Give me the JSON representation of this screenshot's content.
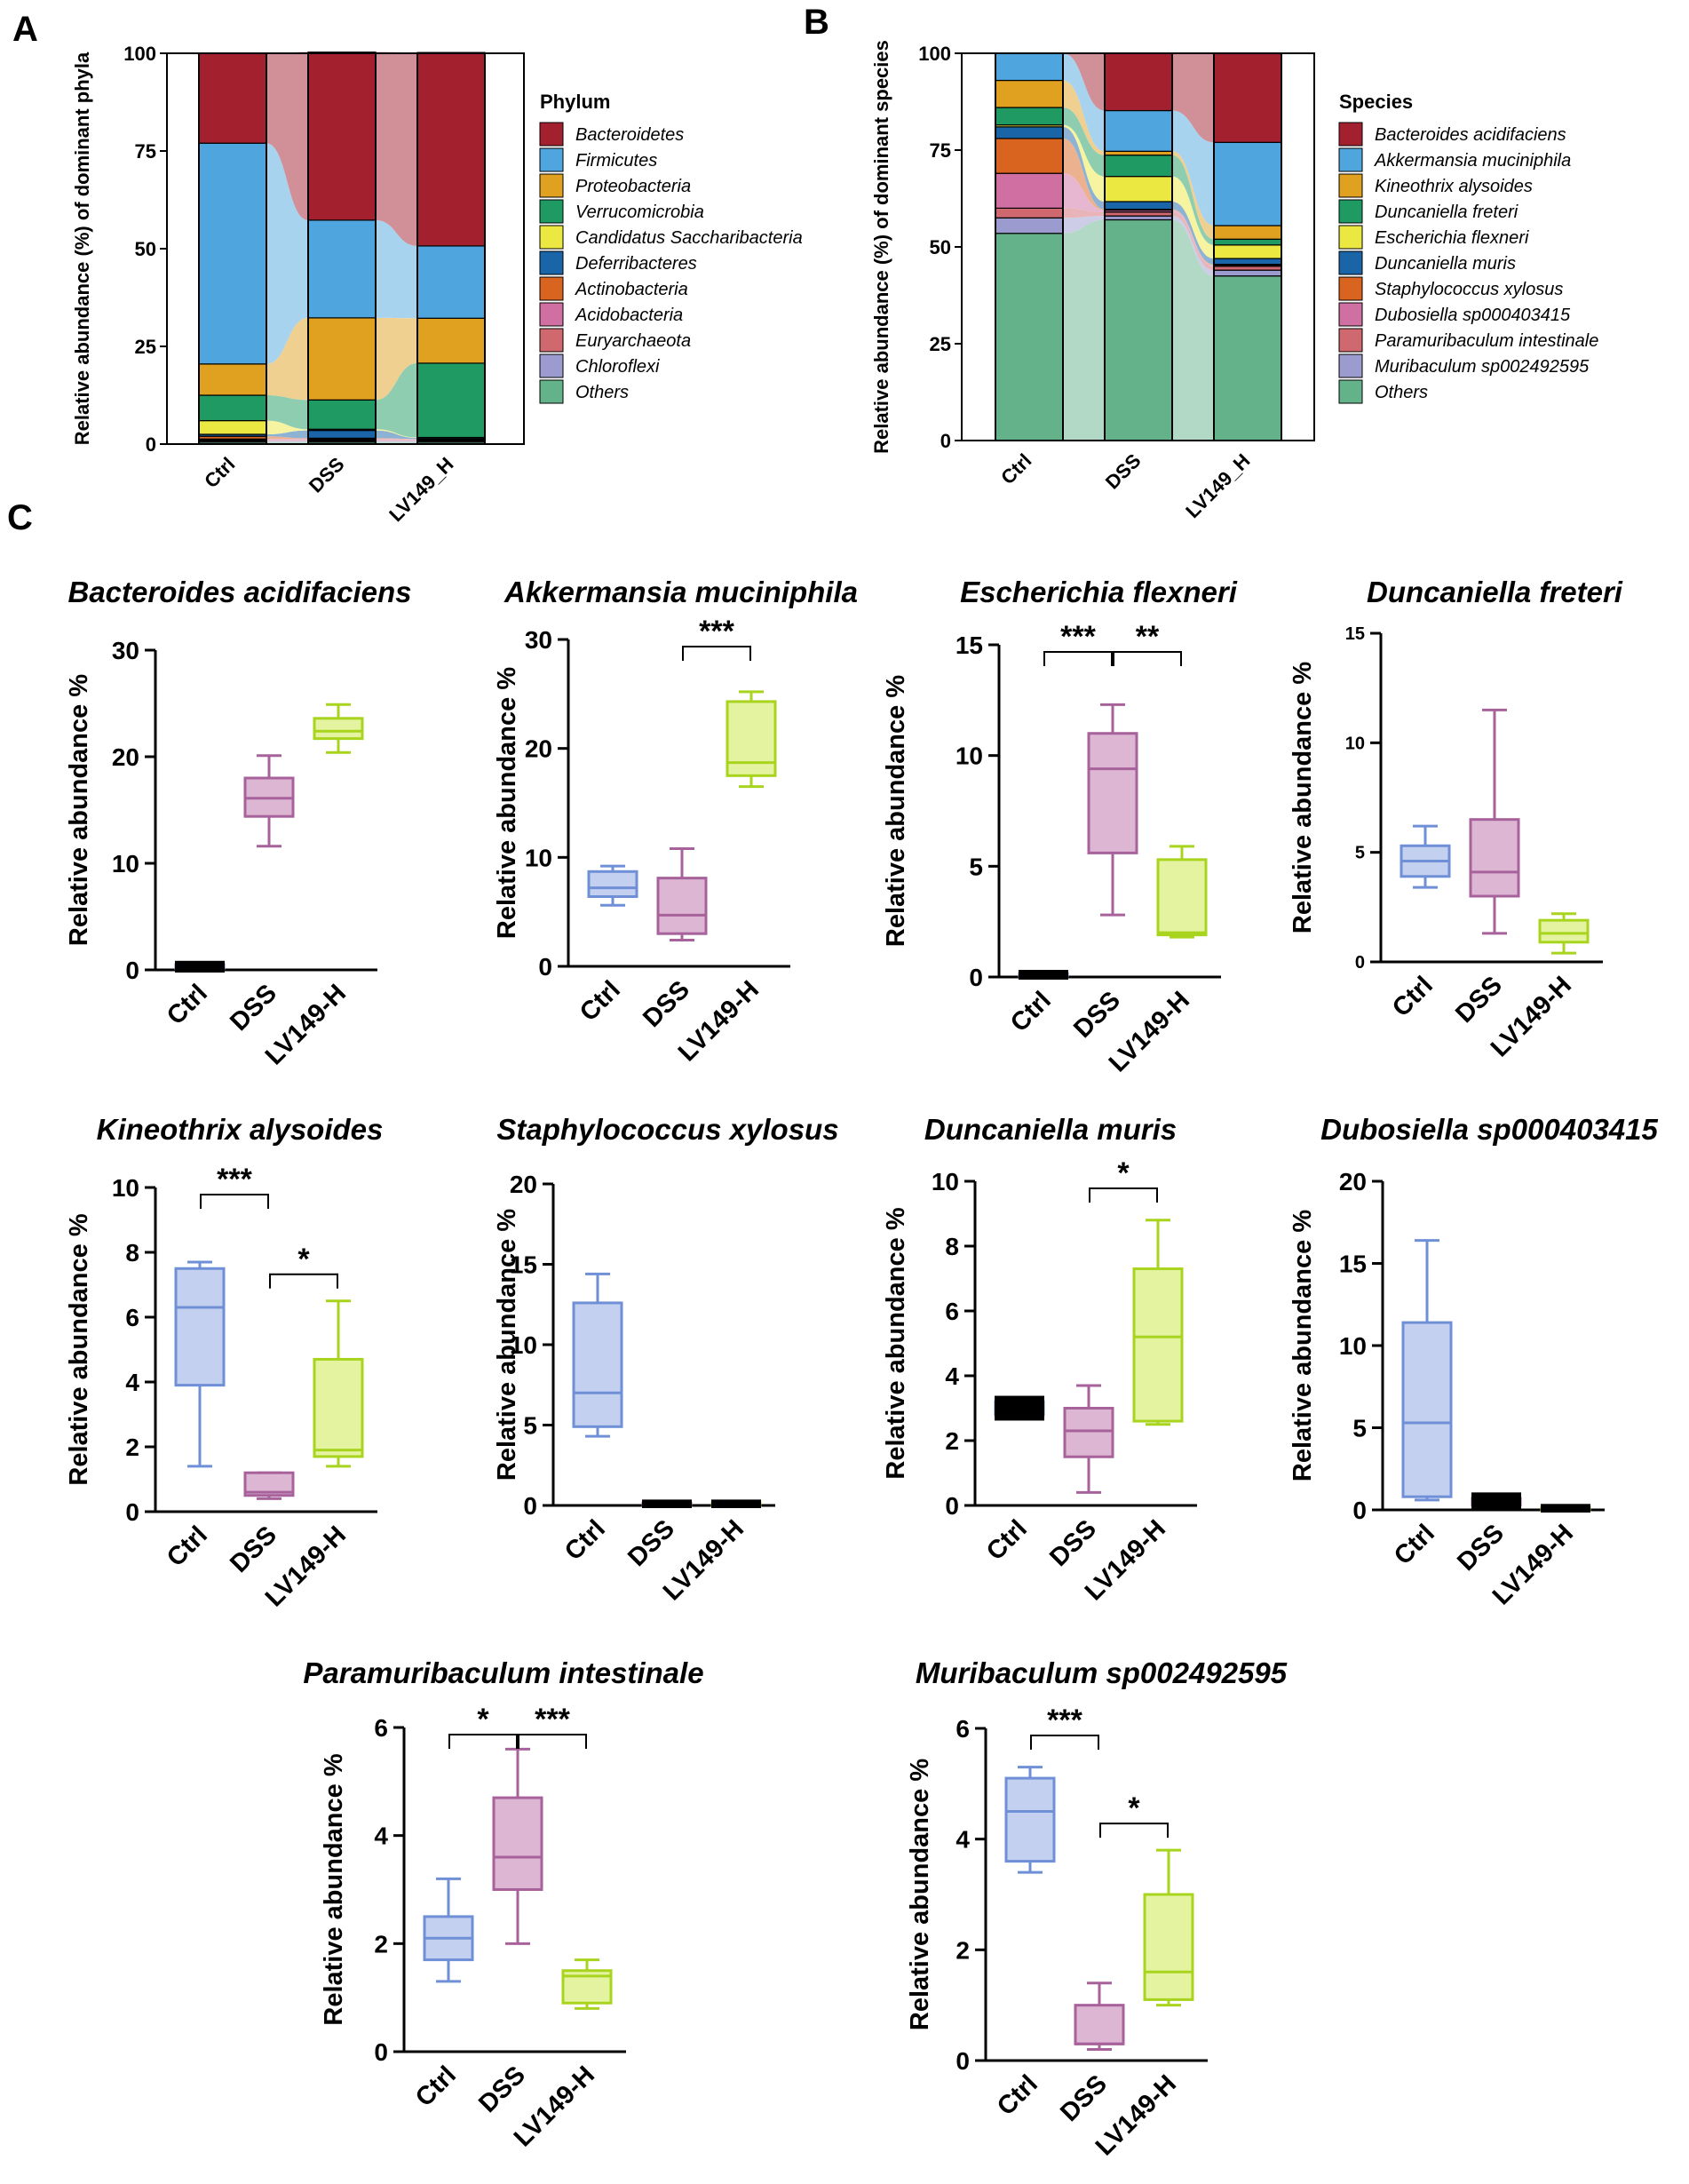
{
  "panel_labels": {
    "a": "A",
    "b": "B",
    "c": "C"
  },
  "colors": {
    "ctrl": "#6f8fd6",
    "ctrl_fill": "#c4d0f0",
    "dss": "#a8629b",
    "dss_fill": "#dcb6d3",
    "lv": "#a8d41e",
    "lv_fill": "#e4f3a0"
  },
  "chart_data": [
    {
      "id": "A",
      "type": "bar",
      "stacked": true,
      "ylabel": "Relative abundance (%) of dominant phyla",
      "ylim": [
        0,
        100
      ],
      "yticks": [
        0,
        25,
        50,
        75,
        100
      ],
      "categories": [
        "Ctrl",
        "DSS",
        "LV149_H"
      ],
      "legend_title": "Phylum",
      "series": [
        {
          "name": "Others",
          "color": "#64b28a",
          "values": [
            0.5,
            0.5,
            0.5
          ]
        },
        {
          "name": "Chloroflexi",
          "color": "#9b9bcf",
          "values": [
            0.3,
            0.3,
            0.3
          ]
        },
        {
          "name": "Euryarchaeota",
          "color": "#d0696f",
          "values": [
            0.2,
            0.2,
            0.2
          ]
        },
        {
          "name": "Acidobacteria",
          "color": "#cf6fa2",
          "values": [
            0.3,
            0.3,
            0.2
          ]
        },
        {
          "name": "Actinobacteria",
          "color": "#d86420",
          "values": [
            0.7,
            0.2,
            0.1
          ]
        },
        {
          "name": "Deferribacteres",
          "color": "#1a64a8",
          "values": [
            0.5,
            2.0,
            0.3
          ]
        },
        {
          "name": "Candidatus Saccharibacteria",
          "color": "#ece842",
          "values": [
            3.5,
            0.3,
            0.1
          ]
        },
        {
          "name": "Verrucomicrobia",
          "color": "#1e9a62",
          "values": [
            6.5,
            7.5,
            19.0
          ]
        },
        {
          "name": "Proteobacteria",
          "color": "#e0a020",
          "values": [
            8.0,
            21.0,
            11.5
          ]
        },
        {
          "name": "Firmicutes",
          "color": "#4fa6de",
          "values": [
            56.5,
            25.0,
            18.5
          ]
        },
        {
          "name": "Bacteroidetes",
          "color": "#a3202f",
          "values": [
            23.0,
            43.0,
            49.5
          ]
        }
      ]
    },
    {
      "id": "B",
      "type": "bar",
      "stacked": true,
      "ylabel": "Relative abundance (%) of dominant species",
      "ylim": [
        0,
        100
      ],
      "yticks": [
        0,
        25,
        50,
        75,
        100
      ],
      "categories": [
        "Ctrl",
        "DSS",
        "LV149_H"
      ],
      "legend_title": "Species",
      "series": [
        {
          "name": "Others",
          "color": "#64b28a",
          "values": [
            53.5,
            57.0,
            42.5
          ]
        },
        {
          "name": "Muribaculum sp002492595",
          "color": "#9b9bcf",
          "values": [
            4.0,
            1.0,
            1.5
          ]
        },
        {
          "name": "Paramuribaculum intestinale",
          "color": "#d0696f",
          "values": [
            2.5,
            1.0,
            1.0
          ]
        },
        {
          "name": "Dubosiella sp000403415",
          "color": "#cf6fa2",
          "values": [
            9.0,
            0.5,
            0.3
          ]
        },
        {
          "name": "Staphylococcus xylosus",
          "color": "#d86420",
          "values": [
            9.0,
            0.2,
            0.2
          ]
        },
        {
          "name": "Duncaniella muris",
          "color": "#1a64a8",
          "values": [
            3.0,
            2.0,
            1.5
          ]
        },
        {
          "name": "Escherichia flexneri",
          "color": "#ece842",
          "values": [
            0.5,
            6.5,
            3.5
          ]
        },
        {
          "name": "Duncaniella freteri",
          "color": "#1e9a62",
          "values": [
            4.5,
            5.5,
            1.5
          ]
        },
        {
          "name": "Kineothrix alysoides",
          "color": "#e0a020",
          "values": [
            7.0,
            1.0,
            3.5
          ]
        },
        {
          "name": "Akkermansia muciniphila",
          "color": "#4fa6de",
          "values": [
            7.0,
            10.5,
            21.5
          ]
        },
        {
          "name": "Bacteroides acidifaciens",
          "color": "#a3202f",
          "values": [
            0.0,
            14.8,
            22.9
          ]
        }
      ]
    },
    {
      "id": "C1",
      "type": "box",
      "title": "Bacteroides acidifaciens",
      "ylabel": "Relative abundance %",
      "ylim": [
        0,
        30
      ],
      "yticks": [
        0,
        10,
        20,
        30
      ],
      "categories": [
        "Ctrl",
        "DSS",
        "LV149-H"
      ],
      "boxes": [
        {
          "min": 0.0,
          "q1": 0.1,
          "median": 0.3,
          "q3": 0.5,
          "max": 0.6
        },
        {
          "min": 11.6,
          "q1": 14.4,
          "median": 16.1,
          "q3": 18.0,
          "max": 20.1
        },
        {
          "min": 20.4,
          "q1": 21.7,
          "median": 22.4,
          "q3": 23.6,
          "max": 24.9
        }
      ],
      "significance": []
    },
    {
      "id": "C2",
      "type": "box",
      "title": "Akkermansia muciniphila",
      "ylabel": "Relative abundance %",
      "ylim": [
        0,
        30
      ],
      "yticks": [
        0,
        10,
        20,
        30
      ],
      "categories": [
        "Ctrl",
        "DSS",
        "LV149-H"
      ],
      "boxes": [
        {
          "min": 5.6,
          "q1": 6.4,
          "median": 7.2,
          "q3": 8.7,
          "max": 9.2
        },
        {
          "min": 2.4,
          "q1": 3.0,
          "median": 4.7,
          "q3": 8.1,
          "max": 10.8
        },
        {
          "min": 16.5,
          "q1": 17.5,
          "median": 18.7,
          "q3": 24.3,
          "max": 25.2
        }
      ],
      "significance": [
        {
          "from": 1,
          "to": 2,
          "label": "***",
          "level": 0
        }
      ]
    },
    {
      "id": "C3",
      "type": "box",
      "title": "Escherichia flexneri",
      "ylabel": "Relative abundance %",
      "ylim": [
        0,
        15
      ],
      "yticks": [
        0,
        5,
        10,
        15
      ],
      "categories": [
        "Ctrl",
        "DSS",
        "LV149-H"
      ],
      "boxes": [
        {
          "min": 0.0,
          "q1": 0.05,
          "median": 0.1,
          "q3": 0.15,
          "max": 0.2
        },
        {
          "min": 2.8,
          "q1": 5.6,
          "median": 9.4,
          "q3": 11.0,
          "max": 12.3
        },
        {
          "min": 1.8,
          "q1": 1.9,
          "median": 2.0,
          "q3": 5.3,
          "max": 5.9
        }
      ],
      "significance": [
        {
          "from": 0,
          "to": 1,
          "label": "***",
          "level": 0
        },
        {
          "from": 1,
          "to": 2,
          "label": "**",
          "level": 0
        }
      ]
    },
    {
      "id": "C4",
      "type": "box",
      "title": "Duncaniella freteri",
      "ylabel": "Relative abundance %",
      "ylim": [
        0,
        15
      ],
      "yticks": [
        0,
        5,
        10,
        15
      ],
      "categories": [
        "Ctrl",
        "DSS",
        "LV149-H"
      ],
      "boxes": [
        {
          "min": 3.4,
          "q1": 3.9,
          "median": 4.6,
          "q3": 5.3,
          "max": 6.2
        },
        {
          "min": 1.3,
          "q1": 3.0,
          "median": 4.1,
          "q3": 6.5,
          "max": 11.5
        },
        {
          "min": 0.4,
          "q1": 0.9,
          "median": 1.3,
          "q3": 1.9,
          "max": 2.2
        }
      ],
      "significance": []
    },
    {
      "id": "C5",
      "type": "box",
      "title": "Kineothrix alysoides",
      "ylabel": "Relative abundance %",
      "ylim": [
        0,
        10
      ],
      "yticks": [
        0,
        2,
        4,
        6,
        8,
        10
      ],
      "categories": [
        "Ctrl",
        "DSS",
        "LV149-H"
      ],
      "boxes": [
        {
          "min": 1.4,
          "q1": 3.9,
          "median": 6.3,
          "q3": 7.5,
          "max": 7.7
        },
        {
          "min": 0.4,
          "q1": 0.5,
          "median": 0.6,
          "q3": 1.2,
          "max": 1.2
        },
        {
          "min": 1.4,
          "q1": 1.7,
          "median": 1.9,
          "q3": 4.7,
          "max": 6.5
        }
      ],
      "significance": [
        {
          "from": 0,
          "to": 1,
          "label": "***",
          "level": 0
        },
        {
          "from": 1,
          "to": 2,
          "label": "*",
          "level": 1
        }
      ]
    },
    {
      "id": "C6",
      "type": "box",
      "title": "Staphylococcus xylosus",
      "ylabel": "Relative abundance %",
      "ylim": [
        0,
        20
      ],
      "yticks": [
        0,
        5,
        10,
        15,
        20
      ],
      "categories": [
        "Ctrl",
        "DSS",
        "LV149-H"
      ],
      "boxes": [
        {
          "min": 4.3,
          "q1": 4.9,
          "median": 7.0,
          "q3": 12.6,
          "max": 14.4
        },
        {
          "min": 0.0,
          "q1": 0.05,
          "median": 0.1,
          "q3": 0.15,
          "max": 0.2
        },
        {
          "min": 0.0,
          "q1": 0.05,
          "median": 0.1,
          "q3": 0.15,
          "max": 0.2
        }
      ],
      "significance": []
    },
    {
      "id": "C7",
      "type": "box",
      "title": "Duncaniella muris",
      "ylabel": "Relative abundance %",
      "ylim": [
        0,
        10
      ],
      "yticks": [
        0,
        2,
        4,
        6,
        8,
        10
      ],
      "categories": [
        "Ctrl",
        "DSS",
        "LV149-H"
      ],
      "boxes": [
        {
          "min": 2.7,
          "q1": 2.8,
          "median": 3.0,
          "q3": 3.2,
          "max": 3.3
        },
        {
          "min": 0.4,
          "q1": 1.5,
          "median": 2.3,
          "q3": 3.0,
          "max": 3.7
        },
        {
          "min": 2.5,
          "q1": 2.6,
          "median": 5.2,
          "q3": 7.3,
          "max": 8.8
        }
      ],
      "significance": [
        {
          "from": 1,
          "to": 2,
          "label": "*",
          "level": 0
        }
      ]
    },
    {
      "id": "C8",
      "type": "box",
      "title": "Dubosiella sp000403415",
      "ylabel": "Relative abundance %",
      "ylim": [
        0,
        20
      ],
      "yticks": [
        0,
        5,
        10,
        15,
        20
      ],
      "categories": [
        "Ctrl",
        "DSS",
        "LV149-H"
      ],
      "boxes": [
        {
          "min": 0.6,
          "q1": 0.8,
          "median": 5.3,
          "q3": 11.4,
          "max": 16.4
        },
        {
          "min": 0.1,
          "q1": 0.3,
          "median": 0.5,
          "q3": 0.7,
          "max": 0.9
        },
        {
          "min": 0.0,
          "q1": 0.05,
          "median": 0.1,
          "q3": 0.15,
          "max": 0.2
        }
      ],
      "significance": []
    },
    {
      "id": "C9",
      "type": "box",
      "title": "Paramuribaculum intestinale",
      "ylabel": "Relative abundance %",
      "ylim": [
        0,
        6
      ],
      "yticks": [
        0,
        2,
        4,
        6
      ],
      "categories": [
        "Ctrl",
        "DSS",
        "LV149-H"
      ],
      "boxes": [
        {
          "min": 1.3,
          "q1": 1.7,
          "median": 2.1,
          "q3": 2.5,
          "max": 3.2
        },
        {
          "min": 2.0,
          "q1": 3.0,
          "median": 3.6,
          "q3": 4.7,
          "max": 5.6
        },
        {
          "min": 0.8,
          "q1": 0.9,
          "median": 1.4,
          "q3": 1.5,
          "max": 1.7
        }
      ],
      "significance": [
        {
          "from": 0,
          "to": 1,
          "label": "*",
          "level": 0
        },
        {
          "from": 1,
          "to": 2,
          "label": "***",
          "level": 0
        }
      ]
    },
    {
      "id": "C10",
      "type": "box",
      "title": "Muribaculum sp002492595",
      "ylabel": "Relative abundance %",
      "ylim": [
        0,
        6
      ],
      "yticks": [
        0,
        2,
        4,
        6
      ],
      "categories": [
        "Ctrl",
        "DSS",
        "LV149-H"
      ],
      "boxes": [
        {
          "min": 3.4,
          "q1": 3.6,
          "median": 4.5,
          "q3": 5.1,
          "max": 5.3
        },
        {
          "min": 0.2,
          "q1": 0.3,
          "median": 0.3,
          "q3": 1.0,
          "max": 1.4
        },
        {
          "min": 1.0,
          "q1": 1.1,
          "median": 1.6,
          "q3": 3.0,
          "max": 3.8
        }
      ],
      "significance": [
        {
          "from": 0,
          "to": 1,
          "label": "***",
          "level": 0
        },
        {
          "from": 1,
          "to": 2,
          "label": "*",
          "level": 1
        }
      ]
    }
  ]
}
